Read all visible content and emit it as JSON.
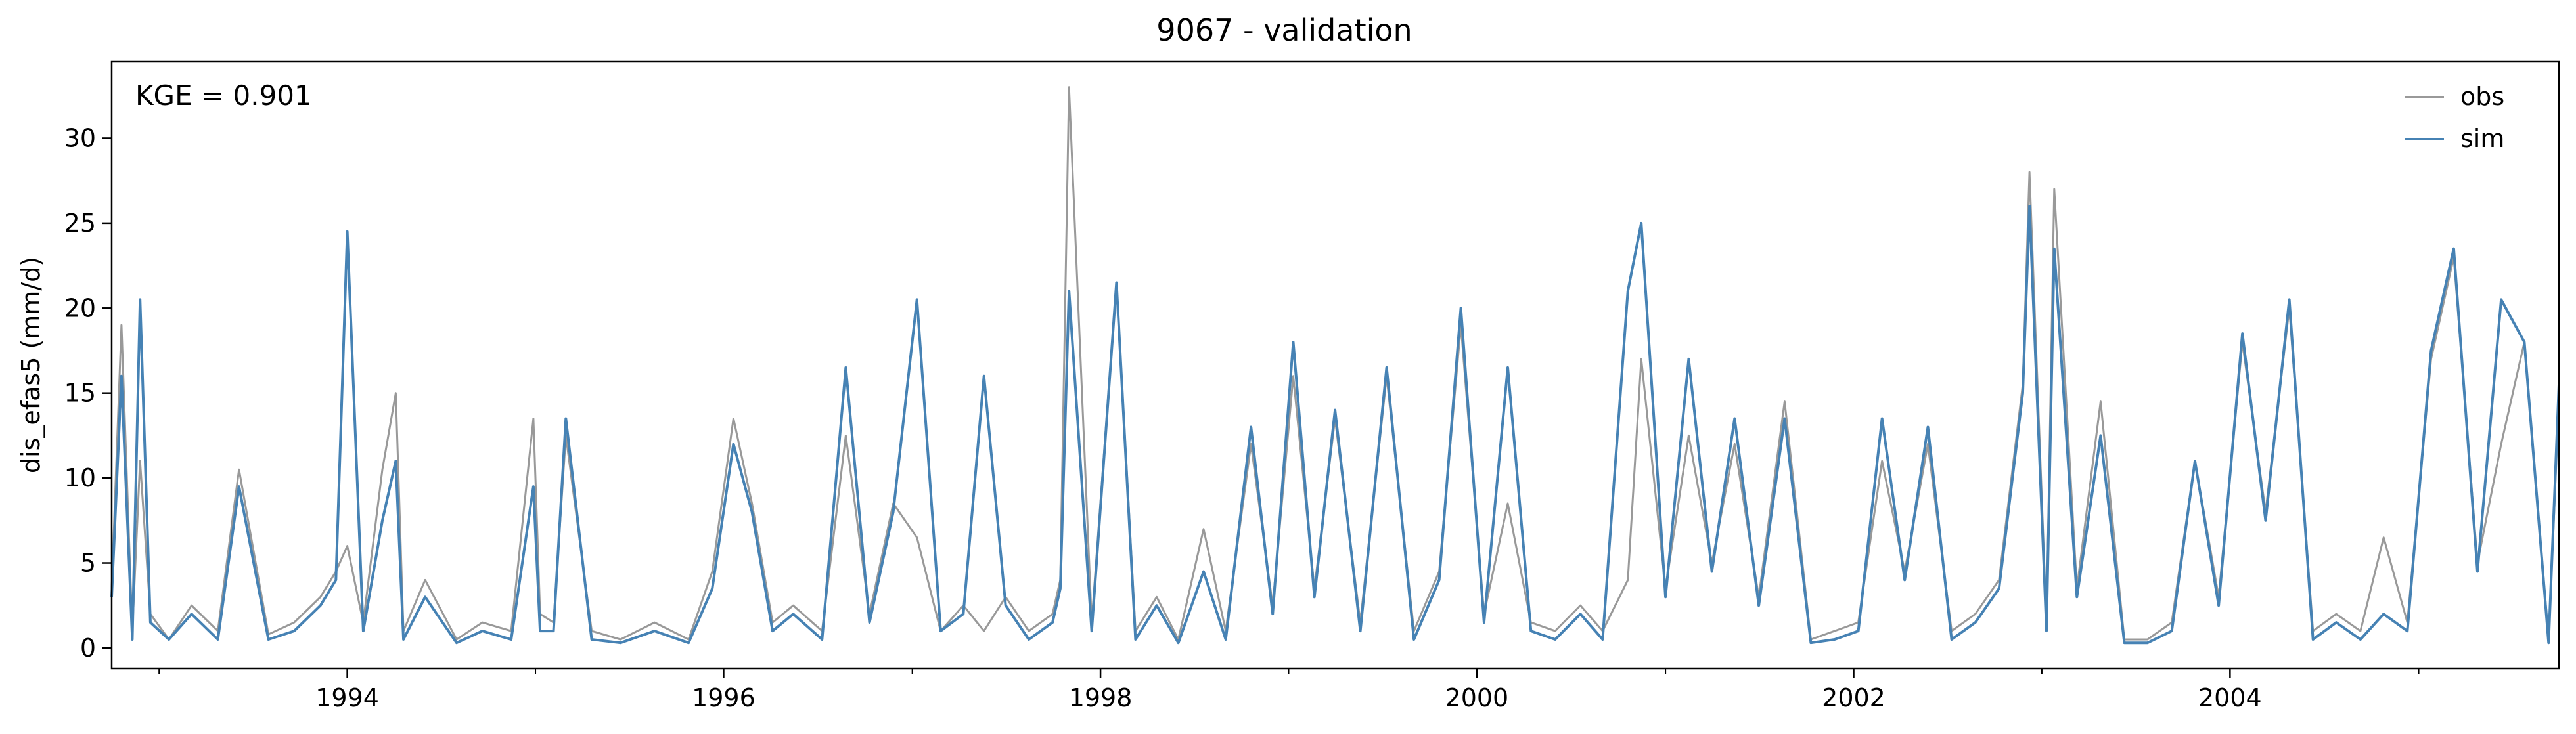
{
  "chart_data": {
    "type": "line",
    "title": "9067 - validation",
    "xlabel": "",
    "ylabel": "dis_efas5 (mm/d)",
    "annotation": "KGE = 0.901",
    "xlim": [
      "1992-10-01",
      "2005-09-30"
    ],
    "ylim": [
      -1.2,
      34.5
    ],
    "x_ticks": [
      "1994-01-01",
      "1996-01-01",
      "1998-01-01",
      "2000-01-01",
      "2002-01-01",
      "2004-01-01"
    ],
    "x_tick_labels": [
      "1994",
      "1996",
      "1998",
      "2000",
      "2002",
      "2004"
    ],
    "y_ticks": [
      0,
      5,
      10,
      15,
      20,
      25,
      30
    ],
    "y_tick_labels": [
      "0",
      "5",
      "10",
      "15",
      "20",
      "25",
      "30"
    ],
    "grid": false,
    "legend_position": "top-right",
    "series": [
      {
        "name": "obs",
        "color": "#999999",
        "x": [
          "1992-10-01",
          "1992-10-20",
          "1992-11-10",
          "1992-11-25",
          "1992-12-15",
          "1993-01-20",
          "1993-03-05",
          "1993-04-25",
          "1993-06-05",
          "1993-08-01",
          "1993-09-20",
          "1993-11-10",
          "1993-12-10",
          "1994-01-01",
          "1994-02-01",
          "1994-03-10",
          "1994-04-05",
          "1994-04-20",
          "1994-06-01",
          "1994-08-01",
          "1994-09-20",
          "1994-11-15",
          "1994-12-28",
          "1995-01-10",
          "1995-02-05",
          "1995-03-01",
          "1995-04-20",
          "1995-06-15",
          "1995-08-20",
          "1995-10-25",
          "1995-12-10",
          "1996-01-20",
          "1996-02-25",
          "1996-04-05",
          "1996-05-15",
          "1996-07-10",
          "1996-08-25",
          "1996-10-10",
          "1996-11-25",
          "1997-01-10",
          "1997-02-25",
          "1997-04-10",
          "1997-05-20",
          "1997-07-01",
          "1997-08-15",
          "1997-09-30",
          "1997-10-15",
          "1997-11-01",
          "1997-12-15",
          "1998-02-01",
          "1998-03-10",
          "1998-04-20",
          "1998-06-01",
          "1998-07-20",
          "1998-09-01",
          "1998-10-20",
          "1998-12-01",
          "1999-01-10",
          "1999-02-20",
          "1999-04-01",
          "1999-05-20",
          "1999-07-10",
          "1999-09-01",
          "1999-10-20",
          "1999-12-01",
          "2000-01-15",
          "2000-03-01",
          "2000-04-15",
          "2000-06-01",
          "2000-07-20",
          "2000-09-01",
          "2000-10-20",
          "2000-11-15",
          "2001-01-01",
          "2001-02-15",
          "2001-04-01",
          "2001-05-15",
          "2001-07-01",
          "2001-08-20",
          "2001-10-10",
          "2001-11-25",
          "2002-01-10",
          "2002-02-25",
          "2002-04-10",
          "2002-05-25",
          "2002-07-10",
          "2002-08-25",
          "2002-10-10",
          "2002-11-25",
          "2002-12-08",
          "2003-01-10",
          "2003-01-25",
          "2003-03-10",
          "2003-04-25",
          "2003-06-10",
          "2003-07-25",
          "2003-09-10",
          "2003-10-25",
          "2003-12-10",
          "2004-01-25",
          "2004-03-10",
          "2004-04-25",
          "2004-06-10",
          "2004-07-25",
          "2004-09-10",
          "2004-10-25",
          "2004-12-10",
          "2005-01-25",
          "2005-03-10",
          "2005-04-25",
          "2005-06-10",
          "2005-07-25",
          "2005-09-10",
          "2005-09-30"
        ],
        "values": [
          3.5,
          19.0,
          1.0,
          11.0,
          2.0,
          0.5,
          2.5,
          1.0,
          10.5,
          0.8,
          1.5,
          3.0,
          4.5,
          6.0,
          1.5,
          10.5,
          15.0,
          1.0,
          4.0,
          0.5,
          1.5,
          1.0,
          13.5,
          2.0,
          1.5,
          12.5,
          1.0,
          0.5,
          1.5,
          0.5,
          4.5,
          13.5,
          8.5,
          1.5,
          2.5,
          1.0,
          12.5,
          2.0,
          8.5,
          6.5,
          1.0,
          2.5,
          1.0,
          3.0,
          1.0,
          2.0,
          4.0,
          33.0,
          1.5,
          21.5,
          1.0,
          3.0,
          0.5,
          7.0,
          1.0,
          12.0,
          2.5,
          16.0,
          3.5,
          13.5,
          1.5,
          16.0,
          1.0,
          4.5,
          19.0,
          2.0,
          8.5,
          1.5,
          1.0,
          2.5,
          1.0,
          4.0,
          17.0,
          3.5,
          12.5,
          5.0,
          12.0,
          3.0,
          14.5,
          0.5,
          1.0,
          1.5,
          11.0,
          4.5,
          12.0,
          1.0,
          2.0,
          4.0,
          15.5,
          28.0,
          1.5,
          27.0,
          3.5,
          14.5,
          0.5,
          0.5,
          1.5,
          11.0,
          3.0,
          18.0,
          8.0,
          20.0,
          1.0,
          2.0,
          1.0,
          6.5,
          1.5,
          17.0,
          23.0,
          5.0,
          12.0,
          18.0,
          0.5,
          14.5
        ]
      },
      {
        "name": "sim",
        "color": "#4682b4",
        "x": [
          "1992-10-01",
          "1992-10-20",
          "1992-11-10",
          "1992-11-25",
          "1992-12-15",
          "1993-01-20",
          "1993-03-05",
          "1993-04-25",
          "1993-06-05",
          "1993-08-01",
          "1993-09-20",
          "1993-11-10",
          "1993-12-10",
          "1994-01-01",
          "1994-02-01",
          "1994-03-10",
          "1994-04-05",
          "1994-04-20",
          "1994-06-01",
          "1994-08-01",
          "1994-09-20",
          "1994-11-15",
          "1994-12-28",
          "1995-01-10",
          "1995-02-05",
          "1995-03-01",
          "1995-04-20",
          "1995-06-15",
          "1995-08-20",
          "1995-10-25",
          "1995-12-10",
          "1996-01-20",
          "1996-02-25",
          "1996-04-05",
          "1996-05-15",
          "1996-07-10",
          "1996-08-25",
          "1996-10-10",
          "1996-11-25",
          "1997-01-10",
          "1997-02-25",
          "1997-04-10",
          "1997-05-20",
          "1997-07-01",
          "1997-08-15",
          "1997-09-30",
          "1997-10-15",
          "1997-11-01",
          "1997-12-15",
          "1998-02-01",
          "1998-03-10",
          "1998-04-20",
          "1998-06-01",
          "1998-07-20",
          "1998-09-01",
          "1998-10-20",
          "1998-12-01",
          "1999-01-10",
          "1999-02-20",
          "1999-04-01",
          "1999-05-20",
          "1999-07-10",
          "1999-09-01",
          "1999-10-20",
          "1999-12-01",
          "2000-01-15",
          "2000-03-01",
          "2000-04-15",
          "2000-06-01",
          "2000-07-20",
          "2000-09-01",
          "2000-10-20",
          "2000-11-15",
          "2001-01-01",
          "2001-02-15",
          "2001-04-01",
          "2001-05-15",
          "2001-07-01",
          "2001-08-20",
          "2001-10-10",
          "2001-11-25",
          "2002-01-10",
          "2002-02-25",
          "2002-04-10",
          "2002-05-25",
          "2002-07-10",
          "2002-08-25",
          "2002-10-10",
          "2002-11-25",
          "2002-12-08",
          "2003-01-10",
          "2003-01-25",
          "2003-03-10",
          "2003-04-25",
          "2003-06-10",
          "2003-07-25",
          "2003-09-10",
          "2003-10-25",
          "2003-12-10",
          "2004-01-25",
          "2004-03-10",
          "2004-04-25",
          "2004-06-10",
          "2004-07-25",
          "2004-09-10",
          "2004-10-25",
          "2004-12-10",
          "2005-01-25",
          "2005-03-10",
          "2005-04-25",
          "2005-06-10",
          "2005-07-25",
          "2005-09-10",
          "2005-09-30"
        ],
        "values": [
          3.0,
          16.0,
          0.5,
          20.5,
          1.5,
          0.5,
          2.0,
          0.5,
          9.5,
          0.5,
          1.0,
          2.5,
          4.0,
          24.5,
          1.0,
          7.5,
          11.0,
          0.5,
          3.0,
          0.3,
          1.0,
          0.5,
          9.5,
          1.0,
          1.0,
          13.5,
          0.5,
          0.3,
          1.0,
          0.3,
          3.5,
          12.0,
          8.0,
          1.0,
          2.0,
          0.5,
          16.5,
          1.5,
          8.0,
          20.5,
          1.0,
          2.0,
          16.0,
          2.5,
          0.5,
          1.5,
          3.5,
          21.0,
          1.0,
          21.5,
          0.5,
          2.5,
          0.3,
          4.5,
          0.5,
          13.0,
          2.0,
          18.0,
          3.0,
          14.0,
          1.0,
          16.5,
          0.5,
          4.0,
          20.0,
          1.5,
          16.5,
          1.0,
          0.5,
          2.0,
          0.5,
          21.0,
          25.0,
          3.0,
          17.0,
          4.5,
          13.5,
          2.5,
          13.5,
          0.3,
          0.5,
          1.0,
          13.5,
          4.0,
          13.0,
          0.5,
          1.5,
          3.5,
          15.0,
          26.0,
          1.0,
          23.5,
          3.0,
          12.5,
          0.3,
          0.3,
          1.0,
          11.0,
          2.5,
          18.5,
          7.5,
          20.5,
          0.5,
          1.5,
          0.5,
          2.0,
          1.0,
          17.5,
          23.5,
          4.5,
          20.5,
          18.0,
          0.3,
          15.5
        ]
      }
    ]
  }
}
